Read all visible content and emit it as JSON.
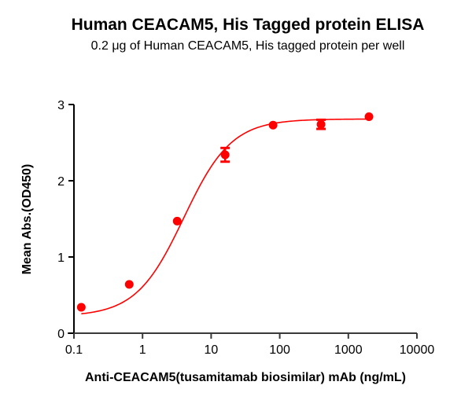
{
  "chart_data": {
    "type": "scatter",
    "title": "Human CEACAM5, His Tagged protein ELISA",
    "subtitle": "0.2 μg of Human CEACAM5, His tagged protein per well",
    "xlabel": "Anti-CEACAM5(tusamitamab biosimilar) mAb (ng/mL)",
    "ylabel": "Mean Abs.(OD450)",
    "xscale": "log",
    "xlim": [
      0.1,
      10000
    ],
    "ylim": [
      0,
      3
    ],
    "x_ticks": [
      "0.1",
      "1",
      "10",
      "100",
      "1000",
      "10000"
    ],
    "y_ticks": [
      "0",
      "1",
      "2",
      "3"
    ],
    "grid": false,
    "legend": null,
    "series": [
      {
        "name": "Anti-CEACAM5 mAb",
        "color": "#ff0000",
        "x": [
          0.128,
          0.64,
          3.2,
          16,
          80,
          400,
          2000
        ],
        "y": [
          0.34,
          0.64,
          1.47,
          2.34,
          2.73,
          2.74,
          2.84
        ],
        "error": [
          0.02,
          0.02,
          0.02,
          0.09,
          0.02,
          0.06,
          0.02
        ],
        "fit": "4PL sigmoidal curve"
      }
    ]
  }
}
